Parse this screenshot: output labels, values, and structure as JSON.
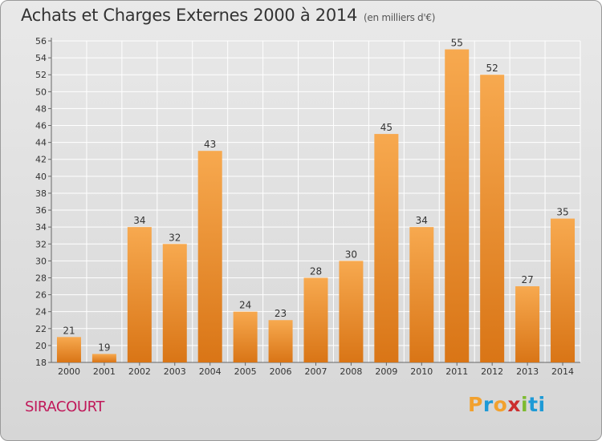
{
  "header": {
    "title": "Achats et Charges Externes 2000 à 2014",
    "unit": "(en milliers d'€)"
  },
  "footer": {
    "commune": "SIRACOURT",
    "logo_text": "Proxiti",
    "logo_colors": [
      "#f2a12e",
      "#1e9ad6",
      "#f2a12e",
      "#cc2e2e",
      "#7dbb30",
      "#1e9ad6",
      "#1e9ad6"
    ]
  },
  "colors": {
    "bar_light": "#f7a94f",
    "bar_dark": "#d97516",
    "commune": "#c0195a"
  },
  "chart_data": {
    "type": "bar",
    "title": "Achats et Charges Externes 2000 à 2014",
    "subtitle": "(en milliers d'€)",
    "xlabel": "",
    "ylabel": "",
    "categories": [
      "2000",
      "2001",
      "2002",
      "2003",
      "2004",
      "2005",
      "2006",
      "2007",
      "2008",
      "2009",
      "2010",
      "2011",
      "2012",
      "2013",
      "2014"
    ],
    "values": [
      21,
      19,
      34,
      32,
      43,
      24,
      23,
      28,
      30,
      45,
      34,
      55,
      52,
      27,
      35
    ],
    "ylim": [
      18,
      56
    ],
    "yticks": [
      18,
      20,
      22,
      24,
      26,
      28,
      30,
      32,
      34,
      36,
      38,
      40,
      42,
      44,
      46,
      48,
      50,
      52,
      54,
      56
    ],
    "grid": true,
    "legend": "none"
  }
}
